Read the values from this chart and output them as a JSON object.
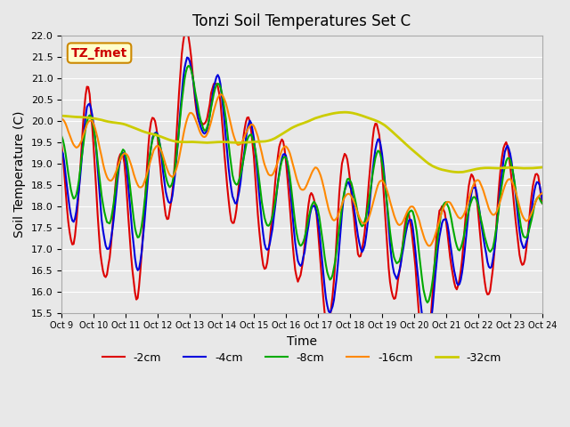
{
  "title": "Tonzi Soil Temperatures Set C",
  "xlabel": "Time",
  "ylabel": "Soil Temperature (C)",
  "ylim": [
    15.5,
    22.0
  ],
  "xlim": [
    0,
    360
  ],
  "background_color": "#e8e8e8",
  "plot_bg_color": "#e8e8e8",
  "annotation_text": "TZ_fmet",
  "annotation_bg": "#ffffcc",
  "annotation_border": "#cc8800",
  "annotation_text_color": "#cc0000",
  "xtick_labels": [
    "Oct 9",
    "Oct 10",
    "Oct 11",
    "Oct 12",
    "Oct 13",
    "Oct 14",
    "Oct 15",
    "Oct 16",
    "Oct 17",
    "Oct 18",
    "Oct 19",
    "Oct 20",
    "Oct 21",
    "Oct 22",
    "Oct 23",
    "Oct 24"
  ],
  "xtick_positions": [
    0,
    24,
    48,
    72,
    96,
    120,
    144,
    168,
    192,
    216,
    240,
    264,
    288,
    312,
    336,
    360
  ],
  "series": {
    "-2cm": {
      "color": "#dd0000",
      "lw": 1.5
    },
    "-4cm": {
      "color": "#0000dd",
      "lw": 1.5
    },
    "-8cm": {
      "color": "#00aa00",
      "lw": 1.5
    },
    "-16cm": {
      "color": "#ff8800",
      "lw": 1.5
    },
    "-32cm": {
      "color": "#cccc00",
      "lw": 2.0
    }
  },
  "legend_order": [
    "-2cm",
    "-4cm",
    "-8cm",
    "-16cm",
    "-32cm"
  ]
}
